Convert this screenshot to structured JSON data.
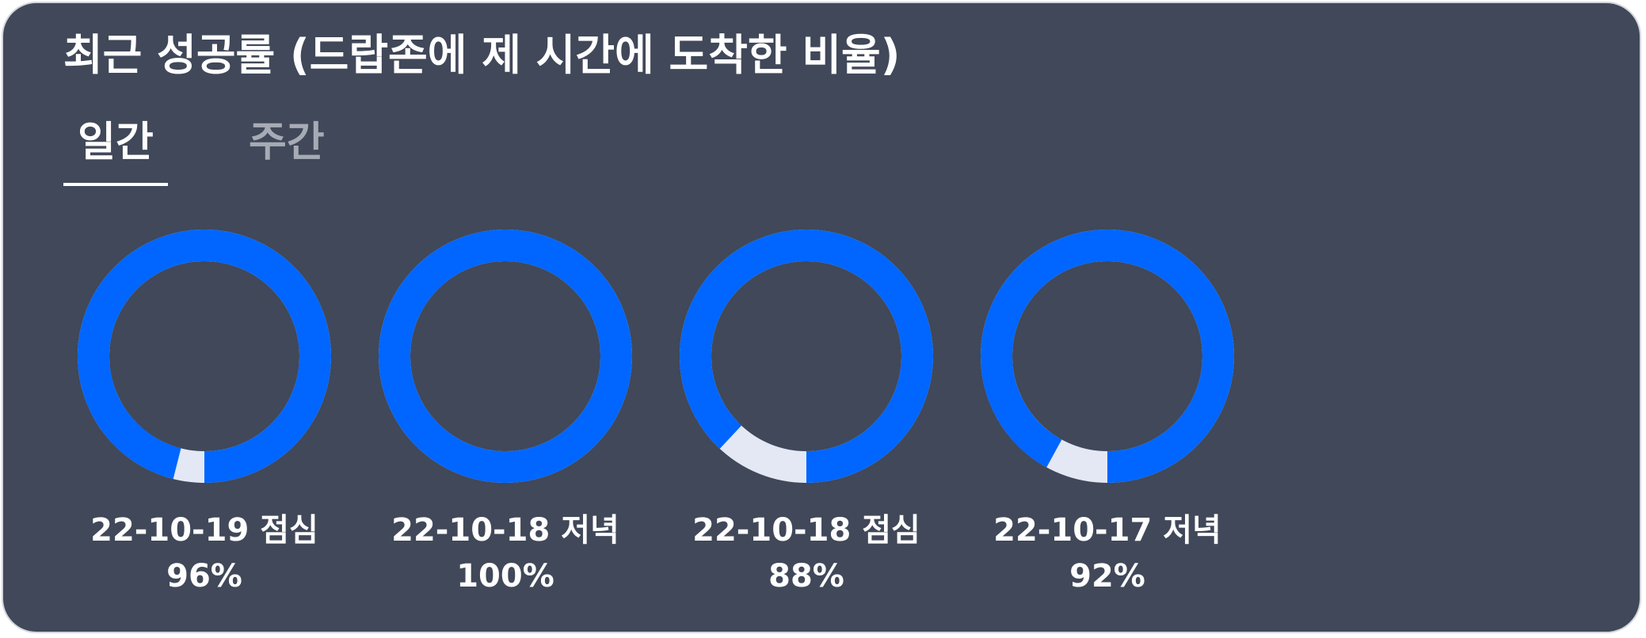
{
  "header": {
    "title": "최근 성공률 (드랍존에 제 시간에 도착한 비율)"
  },
  "tabs": [
    {
      "label": "일간",
      "active": true
    },
    {
      "label": "주간",
      "active": false
    }
  ],
  "colors": {
    "background": "#404859",
    "success": "#0066ff",
    "remainder": "#e3e8f4",
    "inactive_tab": "#a6abb5"
  },
  "chart_data": {
    "type": "pie",
    "title": "최근 성공률 (드랍존에 제 시간에 도착한 비율)",
    "style": "donut",
    "items": [
      {
        "label": "22-10-19 점심",
        "value": 96,
        "display": "96%"
      },
      {
        "label": "22-10-18 저녁",
        "value": 100,
        "display": "100%"
      },
      {
        "label": "22-10-18 점심",
        "value": 88,
        "display": "88%"
      },
      {
        "label": "22-10-17 저녁",
        "value": 92,
        "display": "92%"
      }
    ]
  }
}
